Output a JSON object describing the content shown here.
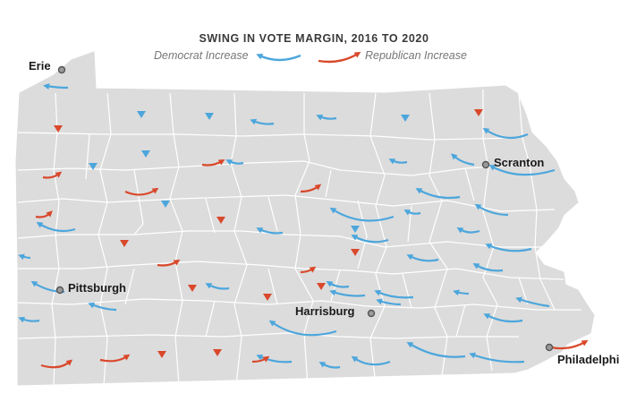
{
  "title": "SWING IN VOTE MARGIN, 2016 TO 2020",
  "legend": {
    "democrat_label": "Democrat Increase",
    "republican_label": "Republican Increase"
  },
  "colors": {
    "democrat": "#4ca6dc",
    "republican": "#d9482b",
    "land": "#dcdcdc",
    "border": "#ffffff",
    "city_dot": "#9a9a9a"
  },
  "cities": {
    "erie": "Erie",
    "pittsburgh": "Pittsburgh",
    "scranton": "Scranton",
    "harrisburg": "Harrisburg",
    "philadelphia": "Philadelphi"
  }
}
